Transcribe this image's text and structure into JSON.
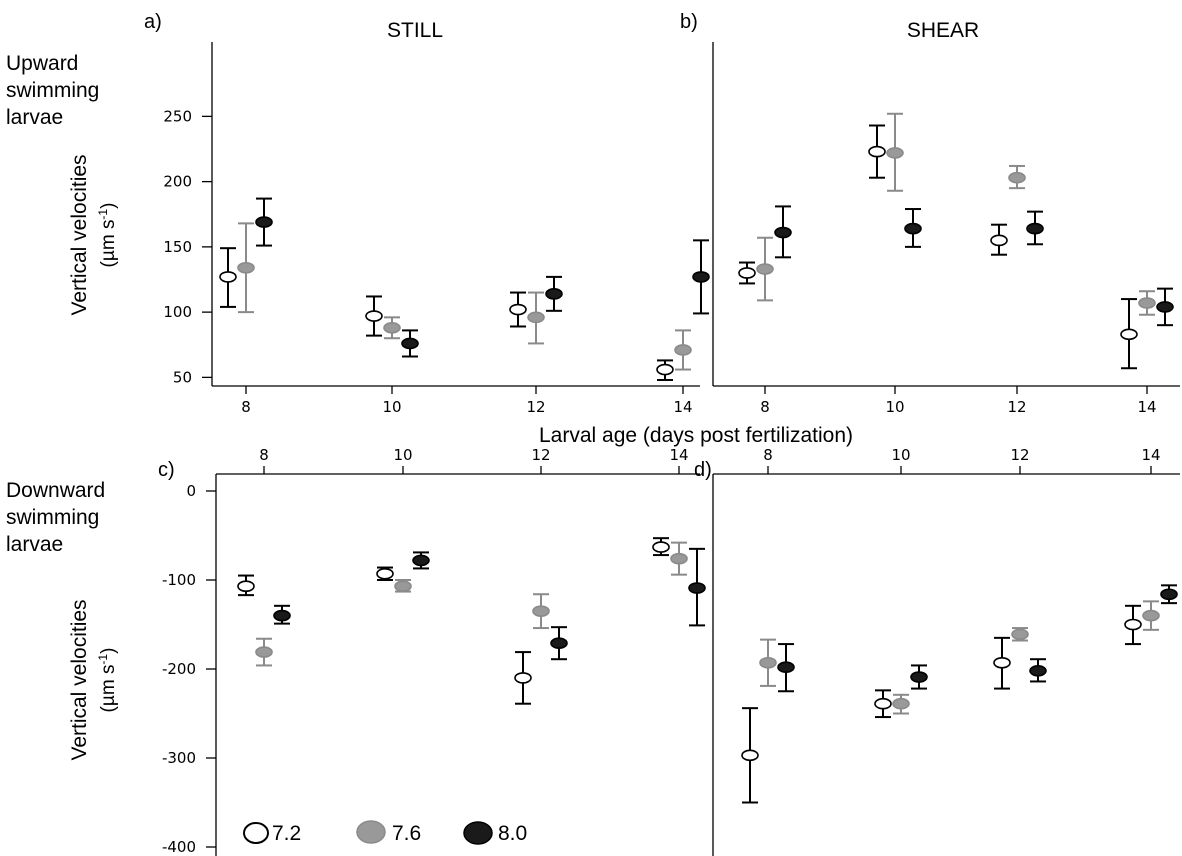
{
  "figure": {
    "row_labels": {
      "top": [
        "Upward",
        "swimming",
        "larvae"
      ],
      "bottom": [
        "Downward",
        "swimming",
        "larvae"
      ]
    },
    "column_titles": [
      "STILL",
      "SHEAR"
    ],
    "panel_letters": [
      "a)",
      "b)",
      "c)",
      "d)"
    ],
    "ylabel_main": "Vertical velocities",
    "ylabel_unit": "(µm s",
    "ylabel_unit_exp": "-1",
    "ylabel_unit_close": ")",
    "xlabel": "Larval age (days post fertilization)",
    "legend": [
      {
        "label": "7.2",
        "fill": "#ffffff",
        "stroke": "#000000"
      },
      {
        "label": "7.6",
        "fill": "#999999",
        "stroke": "#999999"
      },
      {
        "label": "8.0",
        "fill": "#1a1a1a",
        "stroke": "#000000"
      }
    ]
  },
  "chart_data": [
    {
      "type": "scatter",
      "panel": "a)",
      "title": "STILL",
      "xlabel": "Larval age (days post fertilization)",
      "ylabel": "Vertical velocities (µm s-1)",
      "x_ticks": [
        "8",
        "10",
        "12",
        "14"
      ],
      "y_ticks": [
        50,
        100,
        150,
        200,
        250
      ],
      "ylim": [
        25,
        275
      ],
      "x_axis_position": "bottom",
      "series": [
        {
          "name": "7.2",
          "color": "#ffffff",
          "stroke": "#000000",
          "points": [
            {
              "x": 8,
              "y": 127,
              "lo": 104,
              "hi": 149
            },
            {
              "x": 10,
              "y": 97,
              "lo": 82,
              "hi": 112
            },
            {
              "x": 12,
              "y": 102,
              "lo": 89,
              "hi": 115
            },
            {
              "x": 14,
              "y": 56,
              "lo": 48,
              "hi": 63
            }
          ]
        },
        {
          "name": "7.6",
          "color": "#999999",
          "stroke": "#999999",
          "points": [
            {
              "x": 8,
              "y": 134,
              "lo": 100,
              "hi": 168
            },
            {
              "x": 10,
              "y": 88,
              "lo": 80,
              "hi": 96
            },
            {
              "x": 12,
              "y": 96,
              "lo": 76,
              "hi": 115
            },
            {
              "x": 14,
              "y": 71,
              "lo": 56,
              "hi": 86
            }
          ]
        },
        {
          "name": "8.0",
          "color": "#1a1a1a",
          "stroke": "#000000",
          "points": [
            {
              "x": 8,
              "y": 169,
              "lo": 151,
              "hi": 187
            },
            {
              "x": 10,
              "y": 76,
              "lo": 66,
              "hi": 86
            },
            {
              "x": 12,
              "y": 114,
              "lo": 101,
              "hi": 127
            },
            {
              "x": 14,
              "y": 127,
              "lo": 99,
              "hi": 155
            }
          ]
        }
      ]
    },
    {
      "type": "scatter",
      "panel": "b)",
      "title": "SHEAR",
      "xlabel": "Larval age (days post fertilization)",
      "ylabel": "Vertical velocities (µm s-1)",
      "x_ticks": [
        "8",
        "10",
        "12",
        "14"
      ],
      "y_ticks": [],
      "ylim": [
        25,
        275
      ],
      "x_axis_position": "bottom",
      "series": [
        {
          "name": "7.2",
          "color": "#ffffff",
          "stroke": "#000000",
          "points": [
            {
              "x": 8,
              "y": 130,
              "lo": 122,
              "hi": 138
            },
            {
              "x": 10,
              "y": 223,
              "lo": 203,
              "hi": 243
            },
            {
              "x": 12,
              "y": 155,
              "lo": 144,
              "hi": 167
            },
            {
              "x": 14,
              "y": 83,
              "lo": 57,
              "hi": 110
            }
          ]
        },
        {
          "name": "7.6",
          "color": "#999999",
          "stroke": "#999999",
          "points": [
            {
              "x": 8,
              "y": 133,
              "lo": 109,
              "hi": 157
            },
            {
              "x": 10,
              "y": 222,
              "lo": 193,
              "hi": 252
            },
            {
              "x": 12,
              "y": 203,
              "lo": 195,
              "hi": 212
            },
            {
              "x": 14,
              "y": 107,
              "lo": 98,
              "hi": 116
            }
          ]
        },
        {
          "name": "8.0",
          "color": "#1a1a1a",
          "stroke": "#000000",
          "points": [
            {
              "x": 8,
              "y": 161,
              "lo": 142,
              "hi": 181
            },
            {
              "x": 10,
              "y": 164,
              "lo": 150,
              "hi": 179
            },
            {
              "x": 12,
              "y": 164,
              "lo": 152,
              "hi": 177
            },
            {
              "x": 14,
              "y": 104,
              "lo": 90,
              "hi": 118
            }
          ]
        }
      ]
    },
    {
      "type": "scatter",
      "panel": "c)",
      "xlabel": "Larval age (days post fertilization)",
      "ylabel": "Vertical velocities (µm s-1)",
      "x_ticks": [
        "8",
        "10",
        "12",
        "14"
      ],
      "y_ticks": [
        0,
        -100,
        -200,
        -300,
        -400
      ],
      "ylim": [
        -400,
        30
      ],
      "x_axis_position": "top",
      "series": [
        {
          "name": "7.2",
          "color": "#ffffff",
          "stroke": "#000000",
          "points": [
            {
              "x": 8,
              "y": -107,
              "lo": -117,
              "hi": -95
            },
            {
              "x": 10,
              "y": -93,
              "lo": -100,
              "hi": -86
            },
            {
              "x": 12,
              "y": -210,
              "lo": -239,
              "hi": -181
            },
            {
              "x": 14,
              "y": -63,
              "lo": -72,
              "hi": -53
            }
          ]
        },
        {
          "name": "7.6",
          "color": "#999999",
          "stroke": "#999999",
          "points": [
            {
              "x": 8,
              "y": -181,
              "lo": -196,
              "hi": -166
            },
            {
              "x": 10,
              "y": -107,
              "lo": -113,
              "hi": -100
            },
            {
              "x": 12,
              "y": -135,
              "lo": -154,
              "hi": -116
            },
            {
              "x": 14,
              "y": -76,
              "lo": -94,
              "hi": -58
            }
          ]
        },
        {
          "name": "8.0",
          "color": "#1a1a1a",
          "stroke": "#000000",
          "points": [
            {
              "x": 8,
              "y": -140,
              "lo": -149,
              "hi": -129
            },
            {
              "x": 10,
              "y": -78,
              "lo": -87,
              "hi": -69
            },
            {
              "x": 12,
              "y": -171,
              "lo": -189,
              "hi": -153
            },
            {
              "x": 14,
              "y": -109,
              "lo": -151,
              "hi": -65
            }
          ]
        }
      ]
    },
    {
      "type": "scatter",
      "panel": "d)",
      "xlabel": "Larval age (days post fertilization)",
      "ylabel": "Vertical velocities (µm s-1)",
      "x_ticks": [
        "8",
        "10",
        "12",
        "14"
      ],
      "y_ticks": [],
      "ylim": [
        -400,
        30
      ],
      "x_axis_position": "top",
      "series": [
        {
          "name": "7.2",
          "color": "#ffffff",
          "stroke": "#000000",
          "points": [
            {
              "x": 8,
              "y": -297,
              "lo": -350,
              "hi": -244
            },
            {
              "x": 10,
              "y": -239,
              "lo": -254,
              "hi": -224
            },
            {
              "x": 12,
              "y": -193,
              "lo": -222,
              "hi": -165
            },
            {
              "x": 14,
              "y": -150,
              "lo": -172,
              "hi": -129
            }
          ]
        },
        {
          "name": "7.6",
          "color": "#999999",
          "stroke": "#999999",
          "points": [
            {
              "x": 8,
              "y": -193,
              "lo": -219,
              "hi": -167
            },
            {
              "x": 10,
              "y": -239,
              "lo": -250,
              "hi": -229
            },
            {
              "x": 12,
              "y": -161,
              "lo": -168,
              "hi": -154
            },
            {
              "x": 14,
              "y": -140,
              "lo": -156,
              "hi": -124
            }
          ]
        },
        {
          "name": "8.0",
          "color": "#1a1a1a",
          "stroke": "#000000",
          "points": [
            {
              "x": 8,
              "y": -198,
              "lo": -225,
              "hi": -172
            },
            {
              "x": 10,
              "y": -209,
              "lo": -222,
              "hi": -196
            },
            {
              "x": 12,
              "y": -202,
              "lo": -214,
              "hi": -189
            },
            {
              "x": 14,
              "y": -116,
              "lo": -126,
              "hi": -106
            }
          ]
        }
      ]
    }
  ]
}
